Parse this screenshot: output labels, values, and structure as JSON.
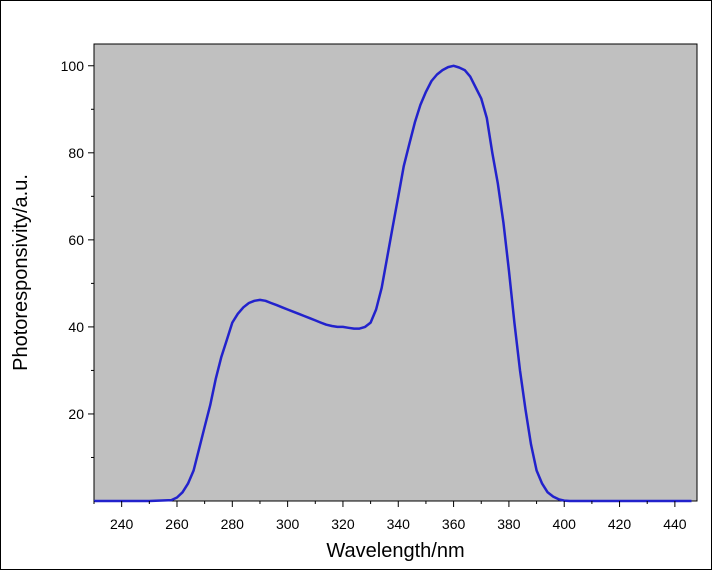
{
  "chart_data": {
    "type": "line",
    "title": "",
    "xlabel": "Wavelength/nm",
    "ylabel": "Photoresponsivity/a.u.",
    "xlim": [
      230,
      448
    ],
    "ylim": [
      0,
      105
    ],
    "x_ticks": [
      240,
      260,
      280,
      300,
      320,
      340,
      360,
      380,
      400,
      420,
      440
    ],
    "y_ticks": [
      20,
      40,
      60,
      80,
      100
    ],
    "grid": false,
    "plot_background": "#c0c0c0",
    "series": [
      {
        "color": "#2222cc",
        "x": [
          230,
          240,
          250,
          258,
          260,
          262,
          264,
          266,
          268,
          270,
          272,
          274,
          276,
          278,
          280,
          282,
          284,
          286,
          288,
          290,
          292,
          294,
          296,
          298,
          300,
          302,
          304,
          306,
          308,
          310,
          312,
          314,
          316,
          318,
          320,
          322,
          324,
          326,
          328,
          330,
          332,
          334,
          336,
          338,
          340,
          342,
          344,
          346,
          348,
          350,
          352,
          354,
          356,
          358,
          360,
          362,
          364,
          366,
          368,
          370,
          372,
          374,
          376,
          378,
          380,
          382,
          384,
          386,
          388,
          390,
          392,
          394,
          396,
          398,
          400,
          402,
          404,
          406,
          408,
          410,
          420,
          430,
          440,
          446
        ],
        "y": [
          0,
          0,
          0,
          0.2,
          0.8,
          2,
          4,
          7,
          12,
          17,
          22,
          28,
          33,
          37,
          41,
          43,
          44.5,
          45.5,
          46,
          46.2,
          46,
          45.5,
          45,
          44.5,
          44,
          43.5,
          43,
          42.5,
          42,
          41.5,
          41,
          40.5,
          40.2,
          40,
          40,
          39.8,
          39.6,
          39.6,
          40,
          41,
          44,
          49,
          56,
          63,
          70,
          77,
          82,
          87,
          91,
          94,
          96.5,
          98,
          99,
          99.7,
          100,
          99.6,
          99,
          97.5,
          95,
          92.5,
          88,
          80,
          73,
          64,
          53,
          41,
          30,
          21,
          13,
          7,
          4,
          2,
          1,
          0.4,
          0.1,
          0,
          0,
          0,
          0,
          0,
          0,
          0,
          0,
          0
        ]
      }
    ]
  }
}
